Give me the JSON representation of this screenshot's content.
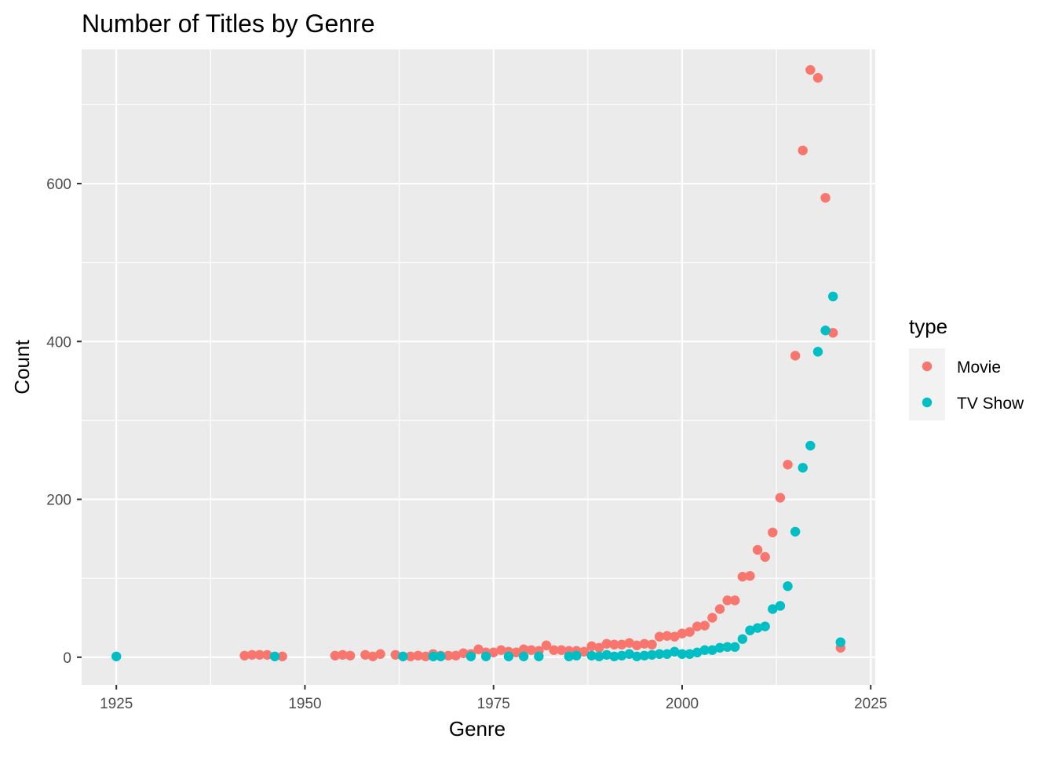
{
  "chart_data": {
    "type": "scatter",
    "title": "Number of Titles by Genre",
    "xlabel": "Genre",
    "ylabel": "Count",
    "xlim": [
      1920.4,
      2025.6
    ],
    "ylim": [
      -35,
      770
    ],
    "x_ticks": [
      1925,
      1950,
      1975,
      2000,
      2025
    ],
    "y_ticks": [
      0,
      200,
      400,
      600
    ],
    "grid": true,
    "background": "#EBEBEB",
    "legend": {
      "title": "type",
      "position": "right",
      "entries": [
        {
          "label": "Movie",
          "color": "#F8766D"
        },
        {
          "label": "TV Show",
          "color": "#00BFC4"
        }
      ]
    },
    "series": [
      {
        "name": "Movie",
        "color": "#F8766D",
        "points": [
          [
            1942,
            2
          ],
          [
            1943,
            3
          ],
          [
            1944,
            3
          ],
          [
            1945,
            3
          ],
          [
            1947,
            1
          ],
          [
            1954,
            2
          ],
          [
            1955,
            3
          ],
          [
            1956,
            2
          ],
          [
            1958,
            3
          ],
          [
            1959,
            1
          ],
          [
            1960,
            4
          ],
          [
            1962,
            3
          ],
          [
            1964,
            1
          ],
          [
            1965,
            2
          ],
          [
            1966,
            1
          ],
          [
            1967,
            4
          ],
          [
            1968,
            2
          ],
          [
            1969,
            2
          ],
          [
            1970,
            2
          ],
          [
            1971,
            5
          ],
          [
            1972,
            4
          ],
          [
            1973,
            10
          ],
          [
            1974,
            6
          ],
          [
            1975,
            6
          ],
          [
            1976,
            9
          ],
          [
            1977,
            7
          ],
          [
            1978,
            6
          ],
          [
            1979,
            10
          ],
          [
            1980,
            9
          ],
          [
            1981,
            8
          ],
          [
            1982,
            15
          ],
          [
            1983,
            9
          ],
          [
            1984,
            9
          ],
          [
            1985,
            8
          ],
          [
            1986,
            8
          ],
          [
            1987,
            7
          ],
          [
            1988,
            14
          ],
          [
            1989,
            12
          ],
          [
            1990,
            17
          ],
          [
            1991,
            16
          ],
          [
            1992,
            16
          ],
          [
            1993,
            18
          ],
          [
            1994,
            15
          ],
          [
            1995,
            17
          ],
          [
            1996,
            16
          ],
          [
            1997,
            26
          ],
          [
            1998,
            27
          ],
          [
            1999,
            26
          ],
          [
            2000,
            30
          ],
          [
            2001,
            32
          ],
          [
            2002,
            39
          ],
          [
            2003,
            40
          ],
          [
            2004,
            50
          ],
          [
            2005,
            61
          ],
          [
            2006,
            72
          ],
          [
            2007,
            72
          ],
          [
            2008,
            102
          ],
          [
            2009,
            103
          ],
          [
            2010,
            136
          ],
          [
            2011,
            127
          ],
          [
            2012,
            158
          ],
          [
            2013,
            202
          ],
          [
            2014,
            244
          ],
          [
            2015,
            382
          ],
          [
            2016,
            642
          ],
          [
            2017,
            744
          ],
          [
            2018,
            734
          ],
          [
            2019,
            582
          ],
          [
            2020,
            411
          ],
          [
            2021,
            12
          ]
        ]
      },
      {
        "name": "TV Show",
        "color": "#00BFC4",
        "points": [
          [
            1925,
            1
          ],
          [
            1946,
            1
          ],
          [
            1963,
            1
          ],
          [
            1967,
            1
          ],
          [
            1968,
            1
          ],
          [
            1972,
            1
          ],
          [
            1974,
            1
          ],
          [
            1977,
            1
          ],
          [
            1979,
            1
          ],
          [
            1981,
            1
          ],
          [
            1985,
            1
          ],
          [
            1986,
            2
          ],
          [
            1988,
            2
          ],
          [
            1989,
            1
          ],
          [
            1990,
            3
          ],
          [
            1991,
            1
          ],
          [
            1992,
            2
          ],
          [
            1993,
            4
          ],
          [
            1994,
            1
          ],
          [
            1995,
            2
          ],
          [
            1996,
            3
          ],
          [
            1997,
            4
          ],
          [
            1998,
            4
          ],
          [
            1999,
            7
          ],
          [
            2000,
            4
          ],
          [
            2001,
            4
          ],
          [
            2002,
            6
          ],
          [
            2003,
            9
          ],
          [
            2004,
            9
          ],
          [
            2005,
            12
          ],
          [
            2006,
            13
          ],
          [
            2007,
            13
          ],
          [
            2008,
            23
          ],
          [
            2009,
            34
          ],
          [
            2010,
            37
          ],
          [
            2011,
            39
          ],
          [
            2012,
            61
          ],
          [
            2013,
            65
          ],
          [
            2014,
            90
          ],
          [
            2015,
            159
          ],
          [
            2016,
            240
          ],
          [
            2017,
            268
          ],
          [
            2018,
            387
          ],
          [
            2019,
            414
          ],
          [
            2020,
            457
          ],
          [
            2021,
            19
          ]
        ]
      }
    ]
  }
}
